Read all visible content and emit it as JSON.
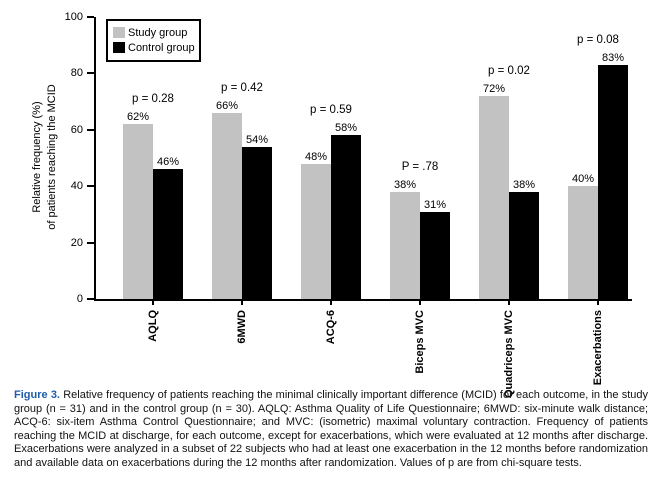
{
  "chart_data": {
    "type": "bar",
    "categories": [
      "AQLQ",
      "6MWD",
      "ACQ-6",
      "Biceps MVC",
      "Quadriceps MVC",
      "Exacerbations"
    ],
    "series": [
      {
        "name": "Study group",
        "color": "#c2c2c2",
        "values": [
          62,
          66,
          48,
          38,
          72,
          40
        ]
      },
      {
        "name": "Control group",
        "color": "#000000",
        "values": [
          46,
          54,
          58,
          31,
          38,
          83
        ]
      }
    ],
    "bar_labels": [
      [
        "62%",
        "66%",
        "48%",
        "38%",
        "72%",
        "40%"
      ],
      [
        "46%",
        "54%",
        "58%",
        "31%",
        "38%",
        "83%"
      ]
    ],
    "p_values": [
      "p = 0.28",
      "p = 0.42",
      "p = 0.59",
      "P = .78",
      "p = 0.02",
      "p = 0.08"
    ],
    "title": "",
    "xlabel": "",
    "ylabel_line1": "Relative frequency (%)",
    "ylabel_line2": "of patients reaching the MCID",
    "yticks": [
      0,
      20,
      40,
      60,
      80,
      100
    ],
    "ylim": [
      0,
      100
    ],
    "grid": false,
    "legend_position": "top-left"
  },
  "legend": {
    "items": [
      {
        "label": "Study group",
        "color": "#c2c2c2"
      },
      {
        "label": "Control group",
        "color": "#000000"
      }
    ]
  },
  "caption": {
    "label": "Figure 3.",
    "label_color": "#1f5da8",
    "text": " Relative frequency of patients reaching the minimal clinically important difference (MCID) for each outcome, in the study group (n = 31) and in the control group (n = 30). AQLQ: Asthma Quality of Life Questionnaire; 6MWD: six-minute walk distance; ACQ-6: six-item Asthma Control Questionnaire; and MVC: (isometric) maximal voluntary contraction. Frequency of patients reaching the MCID at discharge, for each outcome, except for exacerbations, which were evaluated at 12 months after discharge. Exacerbations were analyzed in a subset of 22 subjects who had at least one exacerbation in the 12 months before randomization and available data on exacerbations during the 12 months after randomization. Values of p are from chi-square tests."
  }
}
